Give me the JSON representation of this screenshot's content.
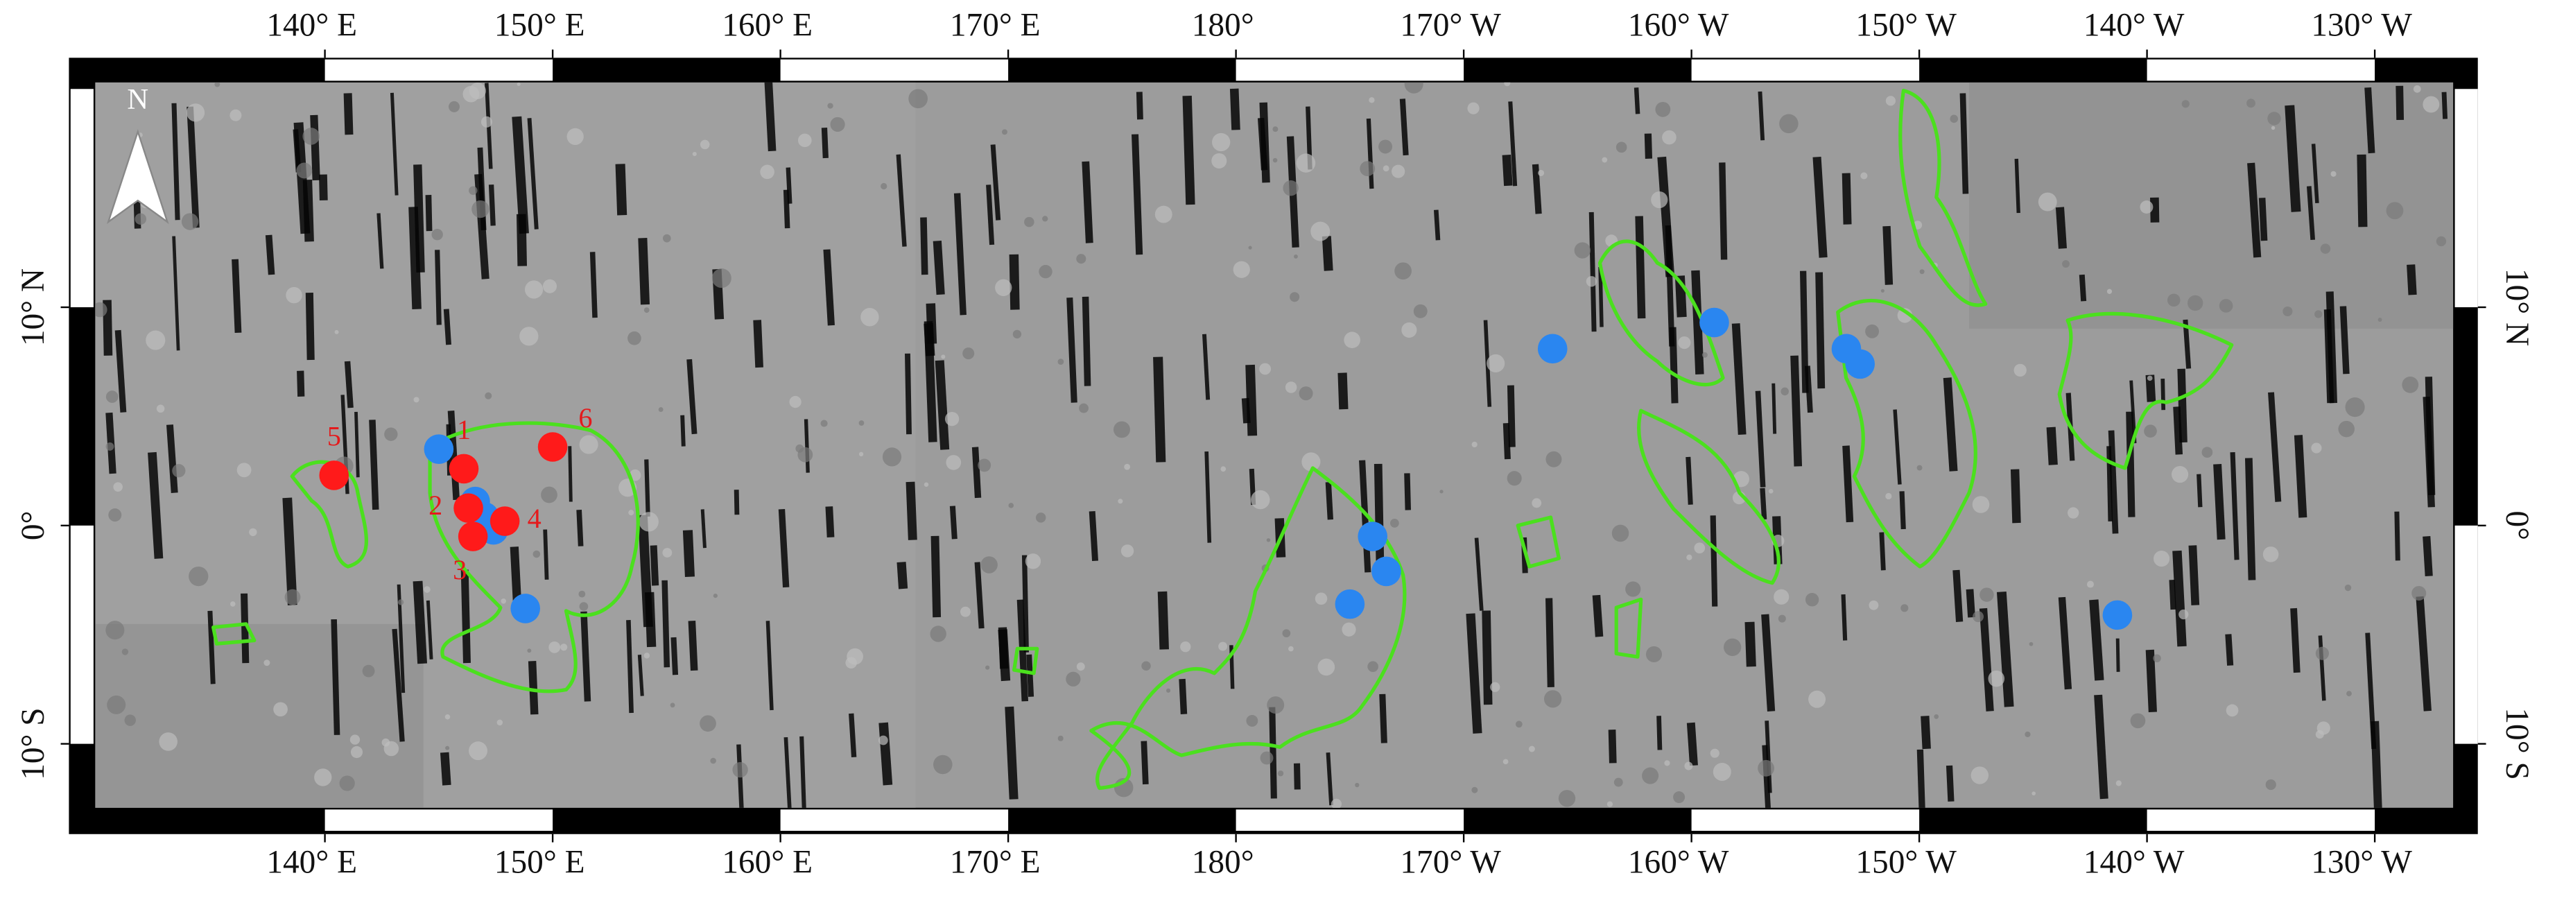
{
  "map": {
    "lon_ticks": [
      {
        "value": 140,
        "label": "140° E"
      },
      {
        "value": 150,
        "label": "150° E"
      },
      {
        "value": 160,
        "label": "160° E"
      },
      {
        "value": 170,
        "label": "170° E"
      },
      {
        "value": 180,
        "label": "180°"
      },
      {
        "value": -170,
        "label": "170° W"
      },
      {
        "value": -160,
        "label": "160° W"
      },
      {
        "value": -150,
        "label": "150° W"
      },
      {
        "value": -140,
        "label": "140° W"
      },
      {
        "value": -130,
        "label": "130° W"
      }
    ],
    "lat_ticks": [
      {
        "value": 10,
        "label": "10° N"
      },
      {
        "value": 0,
        "label": "0°"
      },
      {
        "value": -10,
        "label": "10° S"
      }
    ],
    "north_label": "N",
    "site_color": "#ff1a1a",
    "sites": [
      {
        "label": "1",
        "lon": 146.1,
        "lat": 2.6,
        "label_side": "above"
      },
      {
        "label": "2",
        "lon": 146.3,
        "lat": 0.8,
        "label_side": "left"
      },
      {
        "label": "3",
        "lon": 146.5,
        "lat": -0.5,
        "label_side": "below"
      },
      {
        "label": "4",
        "lon": 147.9,
        "lat": 0.2,
        "label_side": "right"
      },
      {
        "label": "5",
        "lon": 140.4,
        "lat": 2.3,
        "label_side": "above"
      },
      {
        "label": "6",
        "lon": 150.0,
        "lat": 3.6,
        "label_side": "above-right"
      }
    ],
    "point_color": "#2a86f0",
    "points": [
      {
        "lon": 145.0,
        "lat": 3.5
      },
      {
        "lon": 146.6,
        "lat": 1.1
      },
      {
        "lon": 147.0,
        "lat": 0.4
      },
      {
        "lon": 147.4,
        "lat": -0.2
      },
      {
        "lon": 148.8,
        "lat": -3.8
      },
      {
        "lon": -174.0,
        "lat": -0.5
      },
      {
        "lon": -173.4,
        "lat": -2.1
      },
      {
        "lon": -175.0,
        "lat": -3.6
      },
      {
        "lon": -166.1,
        "lat": 8.1
      },
      {
        "lon": -159.0,
        "lat": 9.3
      },
      {
        "lon": -153.2,
        "lat": 8.1
      },
      {
        "lon": -152.6,
        "lat": 7.4
      },
      {
        "lon": -141.3,
        "lat": -4.1
      }
    ]
  }
}
